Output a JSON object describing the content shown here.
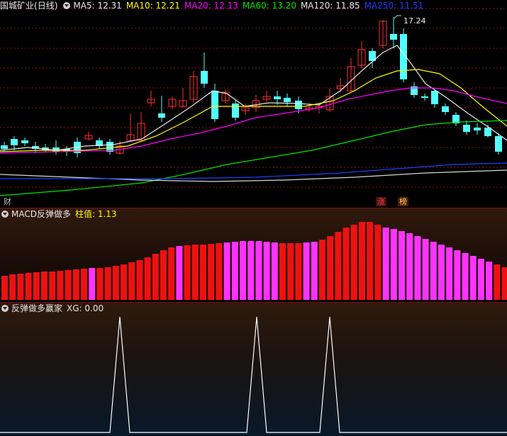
{
  "main": {
    "stock_name": "国城矿业",
    "period": "(日线)",
    "ma": [
      {
        "label": "MA5: 12.31",
        "color": "#e8e8e8"
      },
      {
        "label": "MA10: 12.21",
        "color": "#ffff00"
      },
      {
        "label": "MA20: 12.13",
        "color": "#ff00ff"
      },
      {
        "label": "MA60: 13.20",
        "color": "#00e600"
      },
      {
        "label": "MA120: 11.85",
        "color": "#e8e8e8"
      },
      {
        "label": "MA250: 11.51",
        "color": "#1a3cff"
      }
    ],
    "high_label": "17.24",
    "tags": {
      "cai": "财",
      "zhang": "涨",
      "bang": "榜"
    }
  },
  "macd": {
    "title": "MACD反弹做多",
    "value_label": "柱值: 1.13"
  },
  "xg": {
    "title": "反弹做多赢家",
    "value_label": "XG: 0.00"
  },
  "colors": {
    "up": "#ff3030",
    "down": "#54ffff",
    "bar_red": "#ee1111",
    "bar_magenta": "#ff33ff",
    "grid": "#8a1010"
  }
}
